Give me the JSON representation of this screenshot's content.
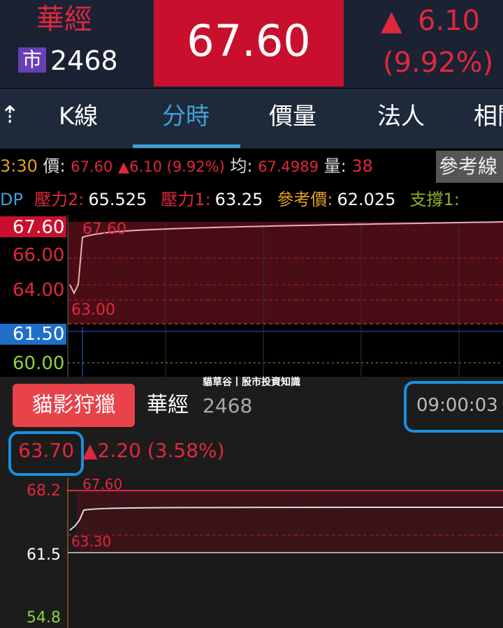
{
  "header": {
    "name": "華經",
    "market": "市",
    "code": "2468",
    "price": "67.60",
    "arrow": "▲",
    "change": "6.10",
    "change_pct": "(9.92%)"
  },
  "tabs": [
    "K線",
    "分時",
    "價量",
    "法人",
    "相關"
  ],
  "info": {
    "time": "3:30",
    "price_label": "價:",
    "price": "67.60",
    "change": "▲6.10 (9.92%)",
    "avg_label": "均:",
    "avg": "67.4989",
    "vol_label": "量:",
    "vol": "38",
    "ref_button": "參考線"
  },
  "levels": {
    "prefix": "DP",
    "items": [
      {
        "label": "壓力2:",
        "value": "65.525"
      },
      {
        "label": "壓力1:",
        "value": "63.25"
      },
      {
        "label": "參考價:",
        "value": "62.025"
      },
      {
        "label": "支撐1:"
      }
    ]
  },
  "chart1": {
    "axis": [
      "67.60",
      "66.00",
      "64.00",
      "61.50",
      "60.00"
    ],
    "annotations": [
      "67.60",
      "63.00"
    ]
  },
  "watermark": "貓草谷丨股市投資知識",
  "panel": {
    "button": "貓影狩獵",
    "name": "華經",
    "code": "2468",
    "time": "09:00:03",
    "price": "63.70",
    "change": "▲2.20 (3.58%)"
  },
  "chart2": {
    "axis": [
      "68.2",
      "61.5",
      "54.8"
    ],
    "annotations": [
      "67.60",
      "63.30"
    ]
  }
}
